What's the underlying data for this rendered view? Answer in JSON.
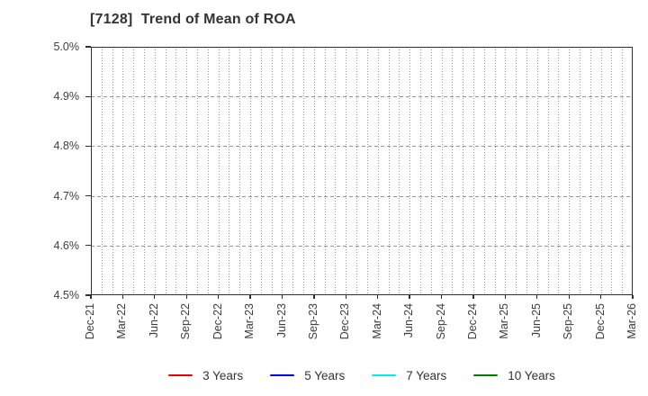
{
  "chart_data": {
    "type": "line",
    "title": "[7128]  Trend of Mean of ROA",
    "xlabel": "",
    "ylabel": "",
    "x_tick_labels": [
      "Dec-21",
      "Mar-22",
      "Jun-22",
      "Sep-22",
      "Dec-22",
      "Mar-23",
      "Jun-23",
      "Sep-23",
      "Dec-23",
      "Mar-24",
      "Jun-24",
      "Sep-24",
      "Dec-24",
      "Mar-25",
      "Jun-25",
      "Sep-25",
      "Dec-25",
      "Mar-26"
    ],
    "y_tick_labels": [
      "5.0%",
      "4.9%",
      "4.8%",
      "4.7%",
      "4.6%",
      "4.5%"
    ],
    "ylim": [
      4.5,
      5.0
    ],
    "y_unit": "%",
    "x_total_months": 51,
    "minor_x_gridline_every_months": 1,
    "grid": true,
    "legend_position": "bottom-center",
    "series": [
      {
        "name": "3 Years",
        "color": "#ee0000",
        "values": []
      },
      {
        "name": "5 Years",
        "color": "#0000ee",
        "values": []
      },
      {
        "name": "7 Years",
        "color": "#00eeee",
        "values": []
      },
      {
        "name": "10 Years",
        "color": "#007d00",
        "values": []
      }
    ]
  },
  "colors": {
    "background": "#ffffff",
    "title": "#333333",
    "tick_label": "#3d3d3d",
    "axis_border": "#2e2e2e",
    "gridline": "#969696"
  }
}
